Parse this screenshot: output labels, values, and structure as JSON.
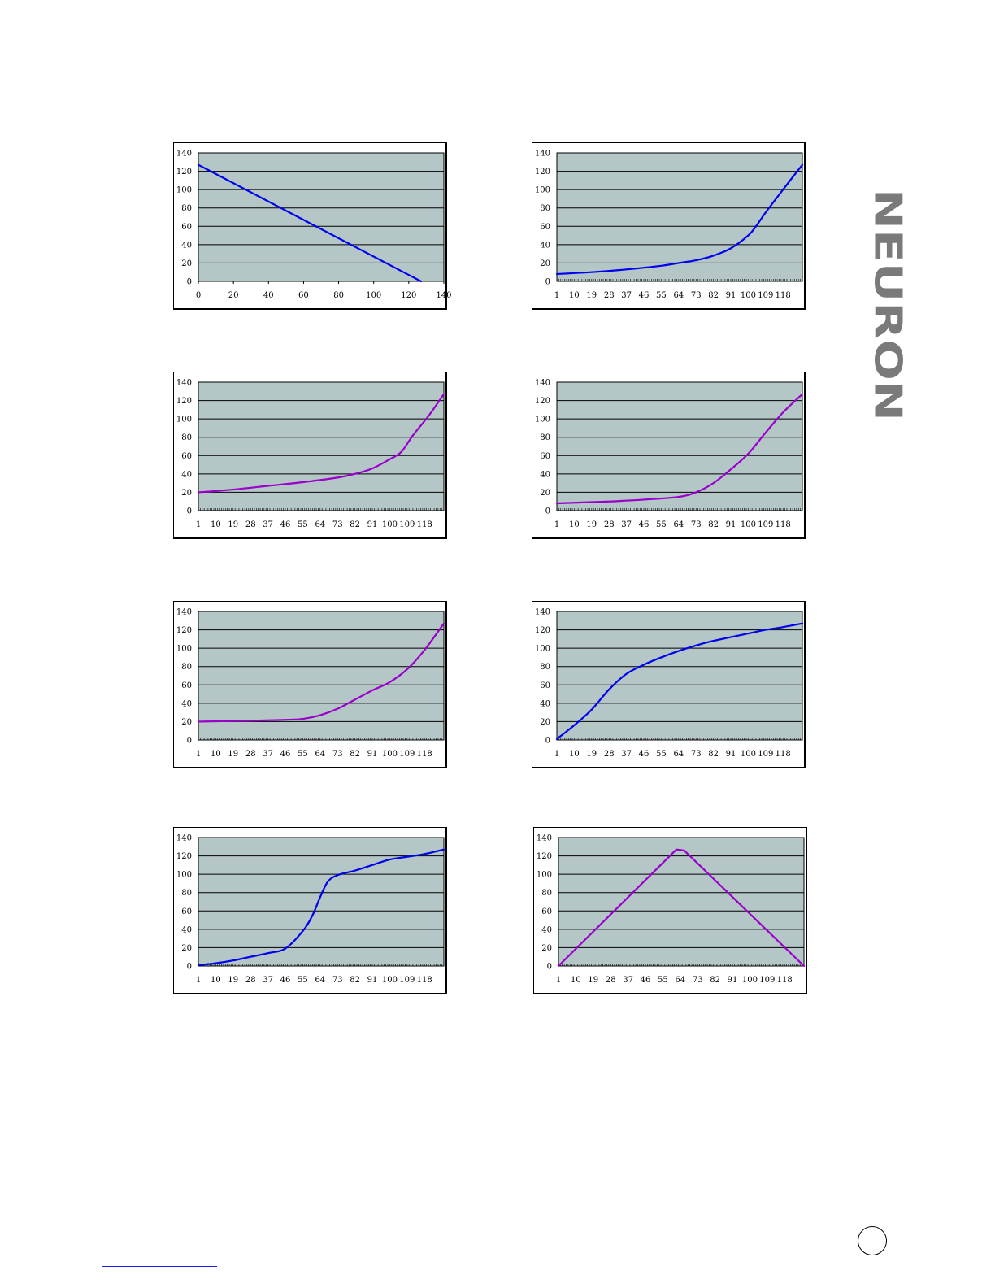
{
  "brand": {
    "name": "NEURON"
  },
  "colors": {
    "plot_bg": "#b5c6c6",
    "blue": "#0000ee",
    "purple": "#9900cc",
    "grid": "#000000"
  },
  "chart_data": [
    {
      "type": "line",
      "id": "c1",
      "color": "blue",
      "x_axis": "numeric",
      "xticks": [
        0,
        20,
        40,
        60,
        80,
        100,
        120,
        140
      ],
      "yticks": [
        0,
        20,
        40,
        60,
        80,
        100,
        120,
        140
      ],
      "xlim": [
        0,
        140
      ],
      "ylim": [
        0,
        140
      ],
      "grid": "horizontal",
      "series": [
        {
          "x": [
            0,
            127
          ],
          "y": [
            127,
            0
          ]
        }
      ]
    },
    {
      "type": "line",
      "id": "c2",
      "color": "blue",
      "x_axis": "category",
      "xticks": [
        "1",
        "10",
        "19",
        "28",
        "37",
        "46",
        "55",
        "64",
        "73",
        "82",
        "91",
        "100",
        "109",
        "118"
      ],
      "yticks": [
        0,
        20,
        40,
        60,
        80,
        100,
        120,
        140
      ],
      "xlim": [
        1,
        128
      ],
      "ylim": [
        0,
        140
      ],
      "grid": "horizontal",
      "series": [
        {
          "x": [
            1,
            19,
            37,
            55,
            64,
            73,
            82,
            91,
            100,
            104,
            109,
            118,
            128
          ],
          "y": [
            8,
            10,
            13,
            17,
            20,
            23,
            28,
            36,
            50,
            60,
            75,
            100,
            127
          ]
        }
      ]
    },
    {
      "type": "line",
      "id": "c3",
      "color": "purple",
      "x_axis": "category",
      "xticks": [
        "1",
        "10",
        "19",
        "28",
        "37",
        "46",
        "55",
        "64",
        "73",
        "82",
        "91",
        "100",
        "109",
        "118"
      ],
      "yticks": [
        0,
        20,
        40,
        60,
        80,
        100,
        120,
        140
      ],
      "xlim": [
        1,
        128
      ],
      "ylim": [
        0,
        140
      ],
      "grid": "horizontal",
      "series": [
        {
          "x": [
            1,
            19,
            37,
            55,
            73,
            82,
            91,
            100,
            106,
            112,
            120,
            128
          ],
          "y": [
            20,
            23,
            27,
            31,
            36,
            40,
            46,
            56,
            64,
            82,
            103,
            127
          ]
        }
      ]
    },
    {
      "type": "line",
      "id": "c4",
      "color": "purple",
      "x_axis": "category",
      "xticks": [
        "1",
        "10",
        "19",
        "28",
        "37",
        "46",
        "55",
        "64",
        "73",
        "82",
        "91",
        "100",
        "109",
        "118"
      ],
      "yticks": [
        0,
        20,
        40,
        60,
        80,
        100,
        120,
        140
      ],
      "xlim": [
        1,
        128
      ],
      "ylim": [
        0,
        140
      ],
      "grid": "horizontal",
      "series": [
        {
          "x": [
            1,
            28,
            46,
            64,
            73,
            82,
            91,
            100,
            109,
            118,
            128
          ],
          "y": [
            8,
            10,
            12,
            15,
            20,
            30,
            45,
            62,
            85,
            107,
            127
          ]
        }
      ]
    },
    {
      "type": "line",
      "id": "c5",
      "color": "purple",
      "x_axis": "category",
      "xticks": [
        "1",
        "10",
        "19",
        "28",
        "37",
        "46",
        "55",
        "64",
        "73",
        "82",
        "91",
        "100",
        "109",
        "118"
      ],
      "yticks": [
        0,
        20,
        40,
        60,
        80,
        100,
        120,
        140
      ],
      "xlim": [
        1,
        128
      ],
      "ylim": [
        0,
        140
      ],
      "grid": "horizontal",
      "series": [
        {
          "x": [
            1,
            28,
            46,
            55,
            64,
            73,
            82,
            91,
            100,
            109,
            118,
            128
          ],
          "y": [
            20,
            21,
            22,
            23,
            27,
            34,
            44,
            54,
            63,
            77,
            98,
            127
          ]
        }
      ]
    },
    {
      "type": "line",
      "id": "c6",
      "color": "blue",
      "x_axis": "category",
      "xticks": [
        "1",
        "10",
        "19",
        "28",
        "37",
        "46",
        "55",
        "64",
        "73",
        "82",
        "91",
        "100",
        "109",
        "118"
      ],
      "yticks": [
        0,
        20,
        40,
        60,
        80,
        100,
        120,
        140
      ],
      "xlim": [
        1,
        128
      ],
      "ylim": [
        0,
        140
      ],
      "grid": "horizontal",
      "series": [
        {
          "x": [
            1,
            10,
            19,
            28,
            37,
            46,
            55,
            64,
            73,
            82,
            91,
            100,
            109,
            118,
            128
          ],
          "y": [
            1,
            16,
            33,
            55,
            72,
            82,
            90,
            97,
            103,
            108,
            112,
            116,
            120,
            123,
            127
          ]
        }
      ]
    },
    {
      "type": "line",
      "id": "c7",
      "color": "blue",
      "x_axis": "category",
      "xticks": [
        "1",
        "10",
        "19",
        "28",
        "37",
        "46",
        "55",
        "64",
        "73",
        "82",
        "91",
        "100",
        "109",
        "118"
      ],
      "yticks": [
        0,
        20,
        40,
        60,
        80,
        100,
        120,
        140
      ],
      "xlim": [
        1,
        128
      ],
      "ylim": [
        0,
        140
      ],
      "grid": "horizontal",
      "series": [
        {
          "x": [
            1,
            10,
            19,
            28,
            37,
            46,
            55,
            60,
            64,
            68,
            73,
            82,
            91,
            100,
            109,
            118,
            128
          ],
          "y": [
            1,
            3,
            6,
            10,
            14,
            19,
            38,
            55,
            75,
            92,
            99,
            104,
            110,
            116,
            119,
            122,
            127
          ]
        }
      ]
    },
    {
      "type": "line",
      "id": "c8",
      "color": "purple",
      "x_axis": "category",
      "xticks": [
        "1",
        "10",
        "19",
        "28",
        "37",
        "46",
        "55",
        "64",
        "73",
        "82",
        "91",
        "100",
        "109",
        "118"
      ],
      "yticks": [
        0,
        20,
        40,
        60,
        80,
        100,
        120,
        140
      ],
      "xlim": [
        1,
        128
      ],
      "ylim": [
        0,
        140
      ],
      "grid": "horizontal",
      "series": [
        {
          "x": [
            1,
            62,
            66,
            128
          ],
          "y": [
            0,
            127,
            126,
            0
          ]
        }
      ]
    }
  ]
}
